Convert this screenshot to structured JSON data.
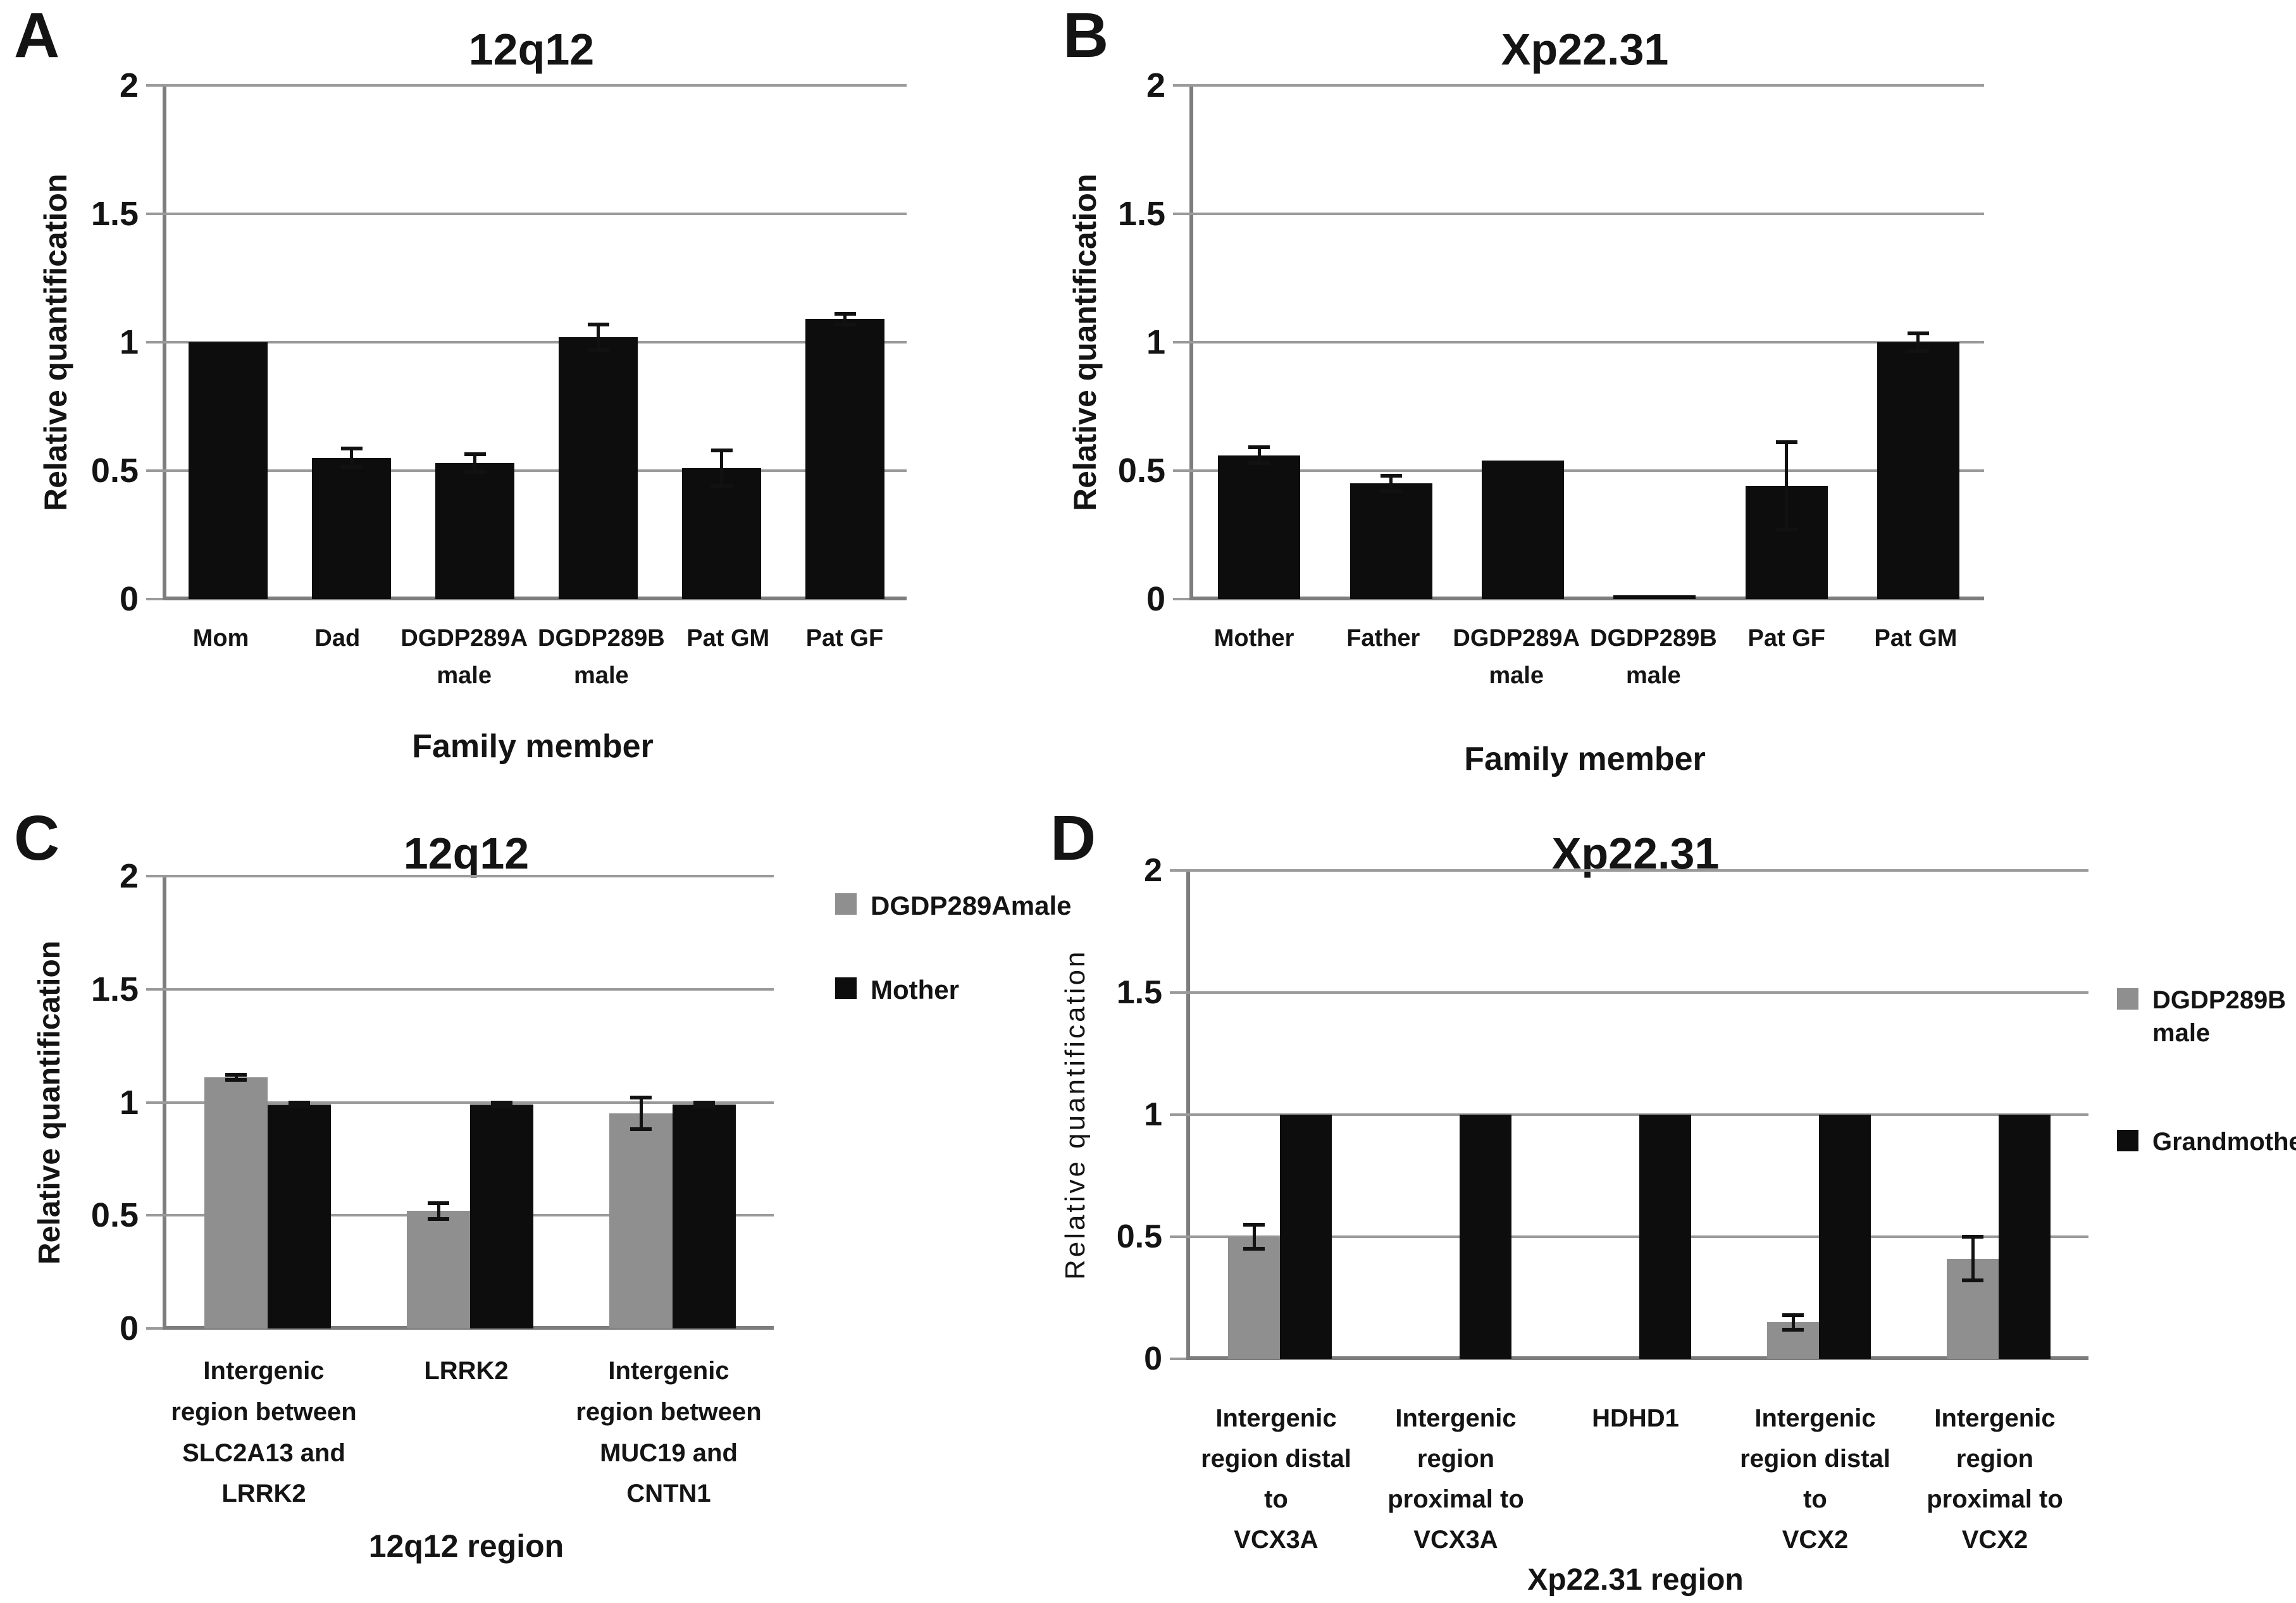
{
  "colors": {
    "black": "#0d0d0d",
    "gray": "#8f8f8f",
    "grid": "#9a9a9a",
    "axis": "#7d7d7d",
    "background": "#ffffff"
  },
  "chart_data": [
    {
      "id": "A",
      "letter": "A",
      "type": "bar",
      "title": "12q12",
      "ylabel": "Relative quantification",
      "xlabel": "Family member",
      "ylim": [
        0,
        2
      ],
      "yticks": [
        0,
        0.5,
        1,
        1.5,
        2
      ],
      "grid": true,
      "legend_position": null,
      "categories": [
        [
          "Mom"
        ],
        [
          "Dad"
        ],
        [
          "DGDP289A",
          "male"
        ],
        [
          "DGDP289B",
          "male"
        ],
        [
          "Pat GM"
        ],
        [
          "Pat GF"
        ]
      ],
      "series": [
        {
          "name": "Relative quantification",
          "color_key": "black",
          "values": [
            1.0,
            0.55,
            0.53,
            1.02,
            0.51,
            1.09
          ],
          "errors": [
            0,
            0.035,
            0.035,
            0.05,
            0.07,
            0.02
          ]
        }
      ],
      "legend": null
    },
    {
      "id": "B",
      "letter": "B",
      "type": "bar",
      "title": "Xp22.31",
      "ylabel": "Relative quantification",
      "xlabel": "Family member",
      "ylim": [
        0,
        2
      ],
      "yticks": [
        0,
        0.5,
        1,
        1.5,
        2
      ],
      "grid": true,
      "legend_position": null,
      "categories": [
        [
          "Mother"
        ],
        [
          "Father"
        ],
        [
          "DGDP289A",
          "male"
        ],
        [
          "DGDP289B",
          "male"
        ],
        [
          "Pat GF"
        ],
        [
          "Pat GM"
        ]
      ],
      "series": [
        {
          "name": "Relative quantification",
          "color_key": "black",
          "values": [
            0.56,
            0.45,
            0.54,
            0.015,
            0.44,
            1.0
          ],
          "errors": [
            0.03,
            0.03,
            0,
            0,
            0.17,
            0.035
          ]
        }
      ],
      "legend": null
    },
    {
      "id": "C",
      "letter": "C",
      "type": "bar",
      "title": "12q12",
      "ylabel": "Relative quantification",
      "xlabel": "12q12 region",
      "ylim": [
        0,
        2
      ],
      "yticks": [
        0,
        0.5,
        1,
        1.5,
        2
      ],
      "grid": true,
      "legend_position": "right",
      "categories": [
        [
          "Intergenic",
          "region between",
          "SLC2A13 and",
          "LRRK2"
        ],
        [
          "LRRK2"
        ],
        [
          "Intergenic",
          "region between",
          "MUC19 and",
          "CNTN1"
        ]
      ],
      "series": [
        {
          "name": "DGDP289Amale",
          "color_key": "gray",
          "values": [
            1.11,
            0.52,
            0.95
          ],
          "errors": [
            0.012,
            0.035,
            0.07
          ]
        },
        {
          "name": "Mother",
          "color_key": "black",
          "values": [
            0.99,
            0.99,
            0.99
          ],
          "errors": [
            0.008,
            0.008,
            0.008
          ]
        }
      ],
      "legend": [
        {
          "label_lines": [
            "DGDP289Amale"
          ],
          "color_key": "gray"
        },
        {
          "label_lines": [
            "Mother"
          ],
          "color_key": "black"
        }
      ]
    },
    {
      "id": "D",
      "letter": "D",
      "type": "bar",
      "title": "Xp22.31",
      "ylabel": "Relative quantification",
      "xlabel": "Xp22.31 region",
      "ylim": [
        0,
        2
      ],
      "yticks": [
        0,
        0.5,
        1,
        1.5,
        2
      ],
      "grid": true,
      "legend_position": "right",
      "categories": [
        [
          "Intergenic",
          "region distal to",
          "VCX3A"
        ],
        [
          "Intergenic",
          "region",
          "proximal to",
          "VCX3A"
        ],
        [
          "HDHD1"
        ],
        [
          "Intergenic",
          "region distal to",
          "VCX2"
        ],
        [
          "Intergenic",
          "region",
          "proximal to",
          "VCX2"
        ]
      ],
      "series": [
        {
          "name": "DGDP289B male",
          "color_key": "gray",
          "values": [
            0.5,
            0,
            0,
            0.15,
            0.41
          ],
          "errors": [
            0.05,
            0,
            0,
            0.03,
            0.09
          ]
        },
        {
          "name": "Grandmother",
          "color_key": "black",
          "values": [
            1.0,
            1.0,
            1.0,
            1.0,
            1.0
          ],
          "errors": [
            0,
            0,
            0,
            0,
            0
          ]
        }
      ],
      "legend": [
        {
          "label_lines": [
            "DGDP289B",
            "male"
          ],
          "color_key": "gray"
        },
        {
          "label_lines": [
            "Grandmother"
          ],
          "color_key": "black"
        }
      ]
    }
  ]
}
